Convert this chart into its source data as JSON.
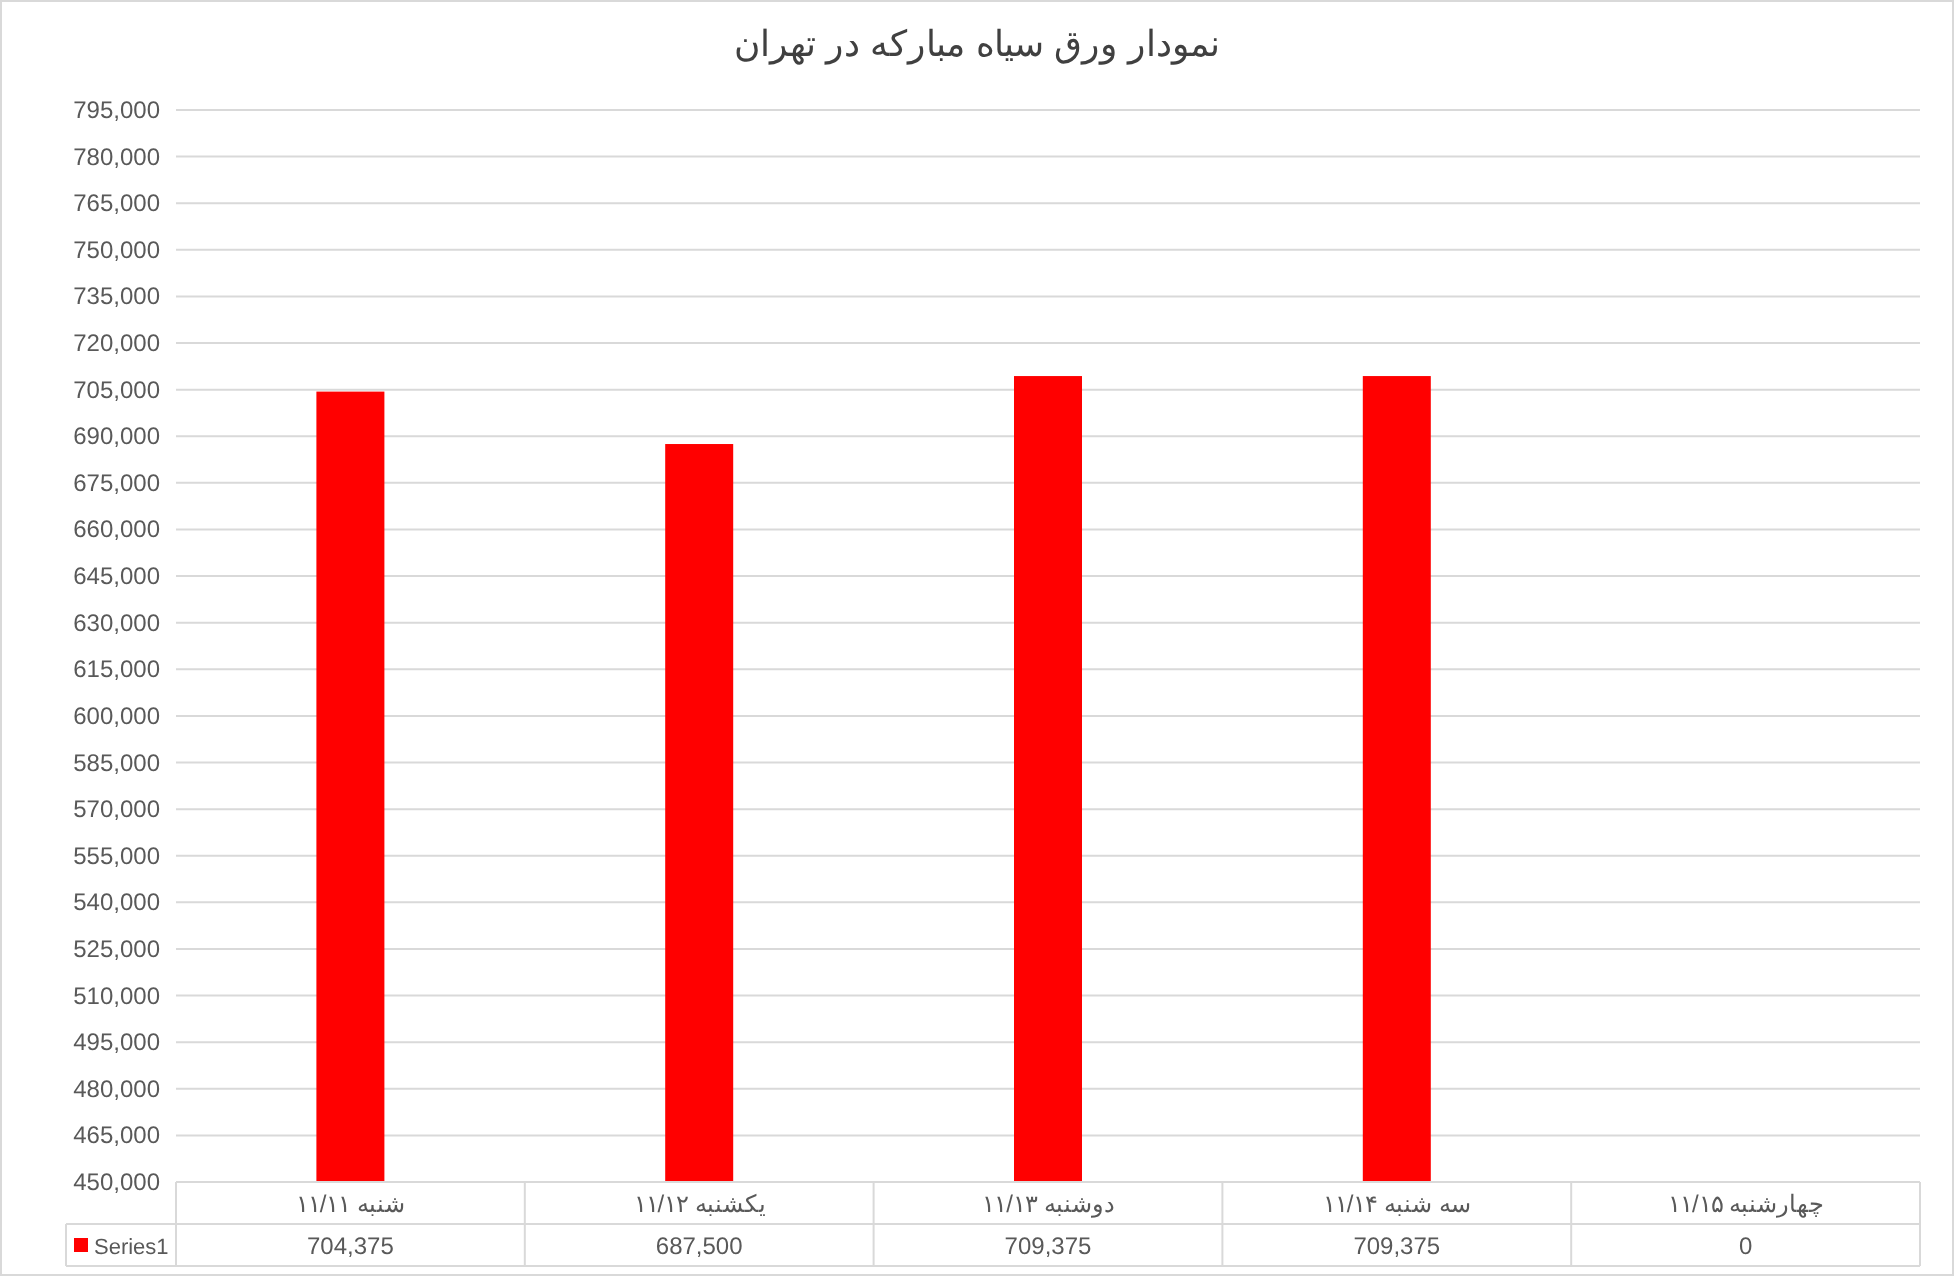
{
  "chart_data": {
    "type": "bar",
    "title": "نمودار ورق سیاه مبارکه در تهران",
    "categories": [
      "شنبه ۱۱/۱۱",
      "یکشنبه ۱۱/۱۲",
      "دوشنبه ۱۱/۱۳",
      "سه شنبه ۱۱/۱۴",
      "چهارشنبه ۱۱/۱۵"
    ],
    "series": [
      {
        "name": "Series1",
        "color": "#ff0000",
        "values": [
          704375,
          687500,
          709375,
          709375,
          null
        ],
        "value_labels": [
          "704,375",
          "687,500",
          "709,375",
          "709,375",
          "0"
        ]
      }
    ],
    "ylim": [
      450000,
      795000
    ],
    "yticks": [
      {
        "value": 450000,
        "label": "450,000"
      },
      {
        "value": 465000,
        "label": "465,000"
      },
      {
        "value": 480000,
        "label": "480,000"
      },
      {
        "value": 495000,
        "label": "495,000"
      },
      {
        "value": 510000,
        "label": "510,000"
      },
      {
        "value": 525000,
        "label": "525,000"
      },
      {
        "value": 540000,
        "label": "540,000"
      },
      {
        "value": 555000,
        "label": "555,000"
      },
      {
        "value": 570000,
        "label": "570,000"
      },
      {
        "value": 585000,
        "label": "585,000"
      },
      {
        "value": 600000,
        "label": "600,000"
      },
      {
        "value": 615000,
        "label": "615,000"
      },
      {
        "value": 630000,
        "label": "630,000"
      },
      {
        "value": 645000,
        "label": "645,000"
      },
      {
        "value": 660000,
        "label": "660,000"
      },
      {
        "value": 675000,
        "label": "675,000"
      },
      {
        "value": 690000,
        "label": "690,000"
      },
      {
        "value": 705000,
        "label": "705,000"
      },
      {
        "value": 720000,
        "label": "720,000"
      },
      {
        "value": 735000,
        "label": "735,000"
      },
      {
        "value": 750000,
        "label": "750,000"
      },
      {
        "value": 765000,
        "label": "765,000"
      },
      {
        "value": 780000,
        "label": "780,000"
      },
      {
        "value": 795000,
        "label": "795,000"
      }
    ],
    "grid": "y",
    "legend": "bottom"
  }
}
